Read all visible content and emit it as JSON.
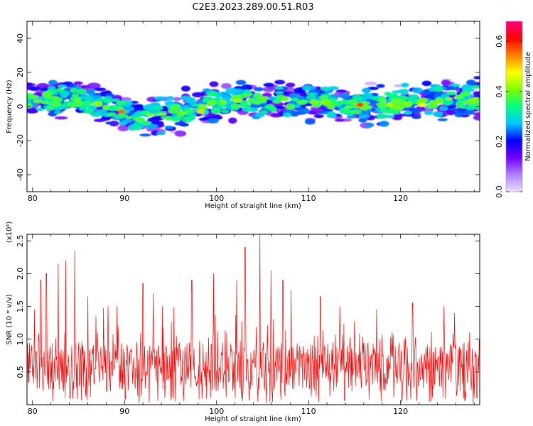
{
  "title": "C2E3.2023.289.00.51.R03",
  "chart_data": [
    {
      "type": "heatmap",
      "xlabel": "Height of straight line (km)",
      "ylabel": "Frequency (Hz)",
      "xlim": [
        79.4,
        128.6
      ],
      "ylim": [
        -50,
        50
      ],
      "xticks": [
        80,
        90,
        100,
        110,
        120
      ],
      "yticks": [
        -40,
        -20,
        0,
        20,
        40
      ],
      "colorbar": {
        "label": "Normalized spectral amplitude",
        "range": [
          0,
          0.68
        ],
        "ticks": [
          "0.0",
          "0.2",
          "0.4",
          "0.6"
        ],
        "tick_values": [
          0,
          0.2,
          0.4,
          0.6
        ],
        "colormap": [
          "#e8e0ff",
          "#b080ff",
          "#7000ff",
          "#0000ff",
          "#00c8ff",
          "#00ff80",
          "#80ff00",
          "#ffff00",
          "#ff8000",
          "#ff0000",
          "#ff0080"
        ]
      },
      "center_line": [
        [
          80,
          3
        ],
        [
          84,
          5
        ],
        [
          88,
          0
        ],
        [
          91,
          -5
        ],
        [
          94,
          -6
        ],
        [
          96,
          -3
        ],
        [
          100,
          2
        ],
        [
          104,
          4
        ],
        [
          108,
          3
        ],
        [
          112,
          2
        ],
        [
          116,
          0
        ],
        [
          120,
          2
        ],
        [
          124,
          4
        ],
        [
          128.6,
          5
        ]
      ],
      "peaks": [
        {
          "x": 89.7,
          "y": -3,
          "a": 0.56
        },
        {
          "x": 98.3,
          "y": -3,
          "a": 0.5
        },
        {
          "x": 115.6,
          "y": 1,
          "a": 0.58
        },
        {
          "x": 122.3,
          "y": 1,
          "a": 0.48
        }
      ]
    },
    {
      "type": "line",
      "xlabel": "Height of straight line (km)",
      "ylabel": "SNR (10 * v/v)",
      "scale_label": "(x10⁴)",
      "xlim": [
        79.4,
        128.6
      ],
      "ylim": [
        0,
        2.6
      ],
      "xticks": [
        80,
        90,
        100,
        110,
        120
      ],
      "yticks": [
        0.5,
        1.0,
        1.5,
        2.0,
        2.5
      ],
      "series": [
        {
          "color": "#ff0000",
          "spikes": [
            [
              80.2,
              1.45
            ],
            [
              80.9,
              1.9
            ],
            [
              81.5,
              2.0
            ],
            [
              82.8,
              2.15
            ],
            [
              83.6,
              2.2
            ],
            [
              84.6,
              2.35
            ],
            [
              86.0,
              1.65
            ],
            [
              86.9,
              1.35
            ],
            [
              88.2,
              1.5
            ],
            [
              89.2,
              1.5
            ],
            [
              92.0,
              1.85
            ],
            [
              93.1,
              1.7
            ],
            [
              94.1,
              1.5
            ],
            [
              97.3,
              1.9
            ],
            [
              99.7,
              2.0
            ],
            [
              102.2,
              1.9
            ],
            [
              103.1,
              2.4
            ],
            [
              104.7,
              2.6
            ],
            [
              105.9,
              2.05
            ],
            [
              107.2,
              1.9
            ],
            [
              108.1,
              1.75
            ],
            [
              111.3,
              1.65
            ],
            [
              113.4,
              1.5
            ],
            [
              117.4,
              1.45
            ],
            [
              121.3,
              1.55
            ],
            [
              124.7,
              1.5
            ],
            [
              127.5,
              1.1
            ]
          ],
          "dips": [
            [
              127.9,
              0.02
            ],
            [
              128.3,
              0.1
            ]
          ]
        }
      ]
    }
  ]
}
